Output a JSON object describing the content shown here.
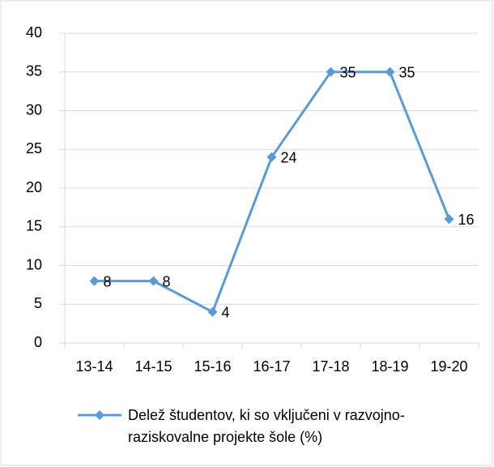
{
  "chart_data": {
    "type": "line",
    "categories": [
      "13-14",
      "14-15",
      "15-16",
      "16-17",
      "17-18",
      "18-19",
      "19-20"
    ],
    "series": [
      {
        "name": "Delež študentov, ki so vključeni v razvojno-raziskovalne projekte šole (%)",
        "color": "#5b9bd5",
        "values": [
          8,
          8,
          4,
          24,
          35,
          35,
          16
        ]
      }
    ],
    "ylim": [
      0,
      40
    ],
    "yticks": [
      0,
      5,
      10,
      15,
      20,
      25,
      30,
      35,
      40
    ],
    "grid": true,
    "legend": "bottom"
  }
}
